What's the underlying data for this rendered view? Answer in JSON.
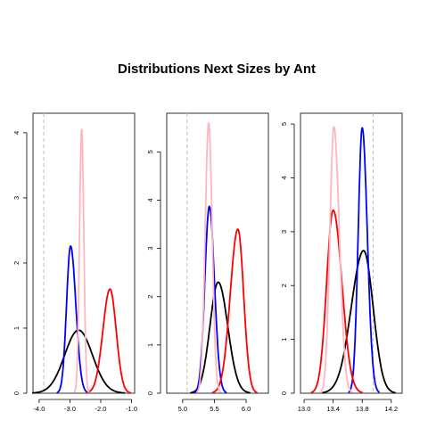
{
  "chart_data": [
    {
      "type": "line",
      "title": "Distributions Next Sizes by Ant",
      "xlim": [
        -4.2,
        -0.9
      ],
      "ylim": [
        0,
        4.3
      ],
      "x_ticks": [
        -4.0,
        -3.0,
        -2.0,
        -1.0
      ],
      "x_tick_labels": [
        "-4.0",
        "-3.0",
        "-2.0",
        "-1.0"
      ],
      "y_ticks": [
        0,
        1,
        2,
        3,
        4
      ],
      "y_tick_labels": [
        "0",
        "1",
        "2",
        "3",
        "4"
      ],
      "reference_x": -3.85,
      "series": [
        {
          "color": "#000000",
          "peak_x": -2.72,
          "peak_y": 0.97,
          "left_sd": 0.45,
          "right_sd": 0.45
        },
        {
          "color": "#0000ff",
          "peak_x": -2.98,
          "peak_y": 2.26,
          "left_sd": 0.13,
          "right_sd": 0.17
        },
        {
          "color": "#ff0000",
          "peak_x": -1.7,
          "peak_y": 1.6,
          "left_sd": 0.23,
          "right_sd": 0.2
        },
        {
          "color": "#ffb6c1",
          "peak_x": -2.62,
          "peak_y": 4.05,
          "left_sd": 0.07,
          "right_sd": 0.07
        }
      ]
    },
    {
      "type": "line",
      "xlim": [
        4.75,
        6.35
      ],
      "ylim": [
        0,
        5.8
      ],
      "x_ticks": [
        5.0,
        5.5,
        6.0
      ],
      "x_tick_labels": [
        "5.0",
        "5.5",
        "6.0"
      ],
      "y_ticks": [
        0,
        1,
        2,
        3,
        4,
        5
      ],
      "y_tick_labels": [
        "0",
        "1",
        "2",
        "3",
        "4",
        "5"
      ],
      "reference_x": 5.07,
      "series": [
        {
          "color": "#000000",
          "peak_x": 5.56,
          "peak_y": 2.3,
          "left_sd": 0.13,
          "right_sd": 0.15
        },
        {
          "color": "#0000ff",
          "peak_x": 5.42,
          "peak_y": 3.87,
          "left_sd": 0.07,
          "right_sd": 0.08
        },
        {
          "color": "#ff0000",
          "peak_x": 5.87,
          "peak_y": 3.4,
          "left_sd": 0.12,
          "right_sd": 0.09
        },
        {
          "color": "#ffb6c1",
          "peak_x": 5.41,
          "peak_y": 5.6,
          "left_sd": 0.055,
          "right_sd": 0.055
        }
      ]
    },
    {
      "type": "line",
      "xlim": [
        12.95,
        14.35
      ],
      "ylim": [
        0,
        5.2
      ],
      "x_ticks": [
        13.0,
        13.4,
        13.8,
        14.2
      ],
      "x_tick_labels": [
        "13.0",
        "13.4",
        "13.8",
        "14.2"
      ],
      "y_ticks": [
        0,
        1,
        2,
        3,
        4,
        5
      ],
      "y_tick_labels": [
        "0",
        "1",
        "2",
        "3",
        "4",
        "5"
      ],
      "reference_x": 13.95,
      "series": [
        {
          "color": "#000000",
          "peak_x": 13.82,
          "peak_y": 2.65,
          "left_sd": 0.17,
          "right_sd": 0.13
        },
        {
          "color": "#0000ff",
          "peak_x": 13.8,
          "peak_y": 4.93,
          "left_sd": 0.055,
          "right_sd": 0.07
        },
        {
          "color": "#ff0000",
          "peak_x": 13.4,
          "peak_y": 3.4,
          "left_sd": 0.09,
          "right_sd": 0.12
        },
        {
          "color": "#ffb6c1",
          "peak_x": 13.41,
          "peak_y": 4.95,
          "left_sd": 0.055,
          "right_sd": 0.075
        }
      ]
    }
  ]
}
